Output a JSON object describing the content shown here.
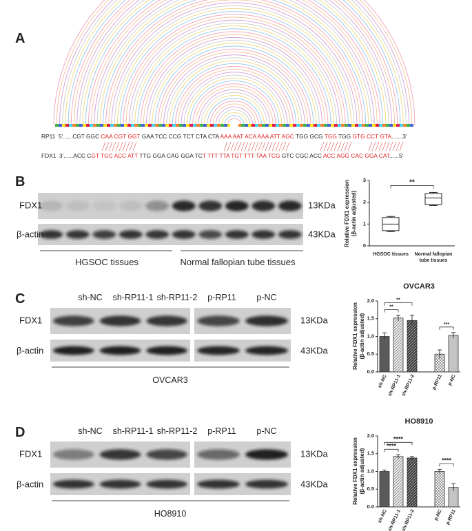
{
  "figure": {
    "A": {
      "label": "A",
      "rp11": [
        {
          "text": "RP11  5'......CGT GGC ",
          "color": "#222222"
        },
        {
          "text": "CAA CGT GGT",
          "color": "#e02020"
        },
        {
          "text": " GAA TCC CCG TCT CTA CTA ",
          "color": "#222222"
        },
        {
          "text": "AAA AAT ACA AAA ATT AGC",
          "color": "#e02020"
        },
        {
          "text": " TGG GCG ",
          "color": "#222222"
        },
        {
          "text": "TGG",
          "color": "#e02020"
        },
        {
          "text": " TGG ",
          "color": "#222222"
        },
        {
          "text": "GTG CCT GTA",
          "color": "#e02020"
        },
        {
          "text": ".......3'",
          "color": "#222222"
        }
      ],
      "fdx1": [
        {
          "text": "FDX1  3'......ACC C",
          "color": "#222222"
        },
        {
          "text": "GT TGC ACC ATT",
          "color": "#e02020"
        },
        {
          "text": " TTG GGA CAG GGA TC",
          "color": "#222222"
        },
        {
          "text": "T TTT TTA TGT TTT TAA TCG",
          "color": "#e02020"
        },
        {
          "text": " GTC CGC ACC ",
          "color": "#222222"
        },
        {
          "text": "ACC AGG CAC GGA CAT",
          "color": "#e02020"
        },
        {
          "text": "......5'",
          "color": "#222222"
        }
      ]
    },
    "B": {
      "label": "B",
      "rows": [
        "FDX1",
        "β-actin"
      ],
      "sizes": [
        "13KDa",
        "43KDa"
      ],
      "groups": [
        "HGSOC tissues",
        "Normal fallopian tube tissues"
      ]
    },
    "C": {
      "label": "C",
      "lanes": [
        "sh-NC",
        "sh-RP11-1",
        "sh-RP11-2",
        "p-RP11",
        "p-NC"
      ],
      "rows": [
        "FDX1",
        "β-actin"
      ],
      "sizes": [
        "13KDa",
        "43KDa"
      ],
      "cell_line": "OVCAR3"
    },
    "D": {
      "label": "D",
      "lanes": [
        "sh-NC",
        "sh-RP11-1",
        "sh-RP11-2",
        "p-RP11",
        "p-NC"
      ],
      "rows": [
        "FDX1",
        "β-actin"
      ],
      "sizes": [
        "13KDa",
        "43KDa"
      ],
      "cell_line": "HO8910"
    }
  },
  "chart_data": [
    {
      "type": "box",
      "ylabel": [
        "Relative FDX1 expression",
        "(β-actin adjusted)"
      ],
      "categories": [
        [
          "HGSOC tissues"
        ],
        [
          "Normal fallopian",
          "tube tissues"
        ]
      ],
      "boxes": [
        {
          "min": 0.65,
          "q1": 0.7,
          "median": 1.0,
          "q3": 1.3,
          "max": 1.35
        },
        {
          "min": 1.85,
          "q1": 1.9,
          "median": 2.2,
          "q3": 2.4,
          "max": 2.45
        }
      ],
      "ylim": [
        0,
        3
      ],
      "yticks": [
        0,
        1,
        2,
        3
      ],
      "annotations": [
        "**"
      ]
    },
    {
      "type": "bar",
      "title": "OVCAR3",
      "ylabel": [
        "Relative FDX1 expression",
        "(β-actin adjusted)"
      ],
      "categories": [
        "sh-NC",
        "sh-RP11-1",
        "sh-RP11-2",
        null,
        "p-RP11",
        "p-NC"
      ],
      "values": [
        1.0,
        1.52,
        1.45,
        null,
        0.5,
        1.03
      ],
      "errors": [
        0.1,
        0.08,
        0.15,
        null,
        0.12,
        0.08
      ],
      "patterns": [
        "solid-dark",
        "hatch-light",
        "hatch-dark",
        null,
        "check",
        "solid-light"
      ],
      "ylim": [
        0,
        2.0
      ],
      "yticks": [
        {
          "value": 0,
          "label": "0.0"
        },
        {
          "value": 0.5,
          "label": "0.5"
        },
        {
          "value": 1,
          "label": "1.0"
        },
        {
          "value": 1.5,
          "label": "1.5"
        },
        {
          "value": 2,
          "label": "2.0"
        }
      ],
      "annotations": [
        "**",
        "**",
        "***"
      ]
    },
    {
      "type": "bar",
      "title": "HO8910",
      "ylabel": [
        "Relative FDX1 expression",
        "(β-actin adjusted)"
      ],
      "categories": [
        "sh-NC",
        "sh-RP11-1",
        "sh-RP11-2",
        null,
        "p-NC",
        "p-RP11"
      ],
      "values": [
        1.0,
        1.42,
        1.38,
        null,
        1.0,
        0.55
      ],
      "errors": [
        0.04,
        0.05,
        0.04,
        null,
        0.06,
        0.1
      ],
      "patterns": [
        "solid-dark",
        "hatch-light",
        "hatch-dark",
        null,
        "check",
        "solid-light"
      ],
      "ylim": [
        0,
        2.0
      ],
      "yticks": [
        {
          "value": 0,
          "label": "0.0"
        },
        {
          "value": 0.5,
          "label": "0.5"
        },
        {
          "value": 1,
          "label": "1.0"
        },
        {
          "value": 1.5,
          "label": "1.5"
        },
        {
          "value": 2,
          "label": "2.0"
        }
      ],
      "annotations": [
        "****",
        "****",
        "****"
      ]
    }
  ]
}
